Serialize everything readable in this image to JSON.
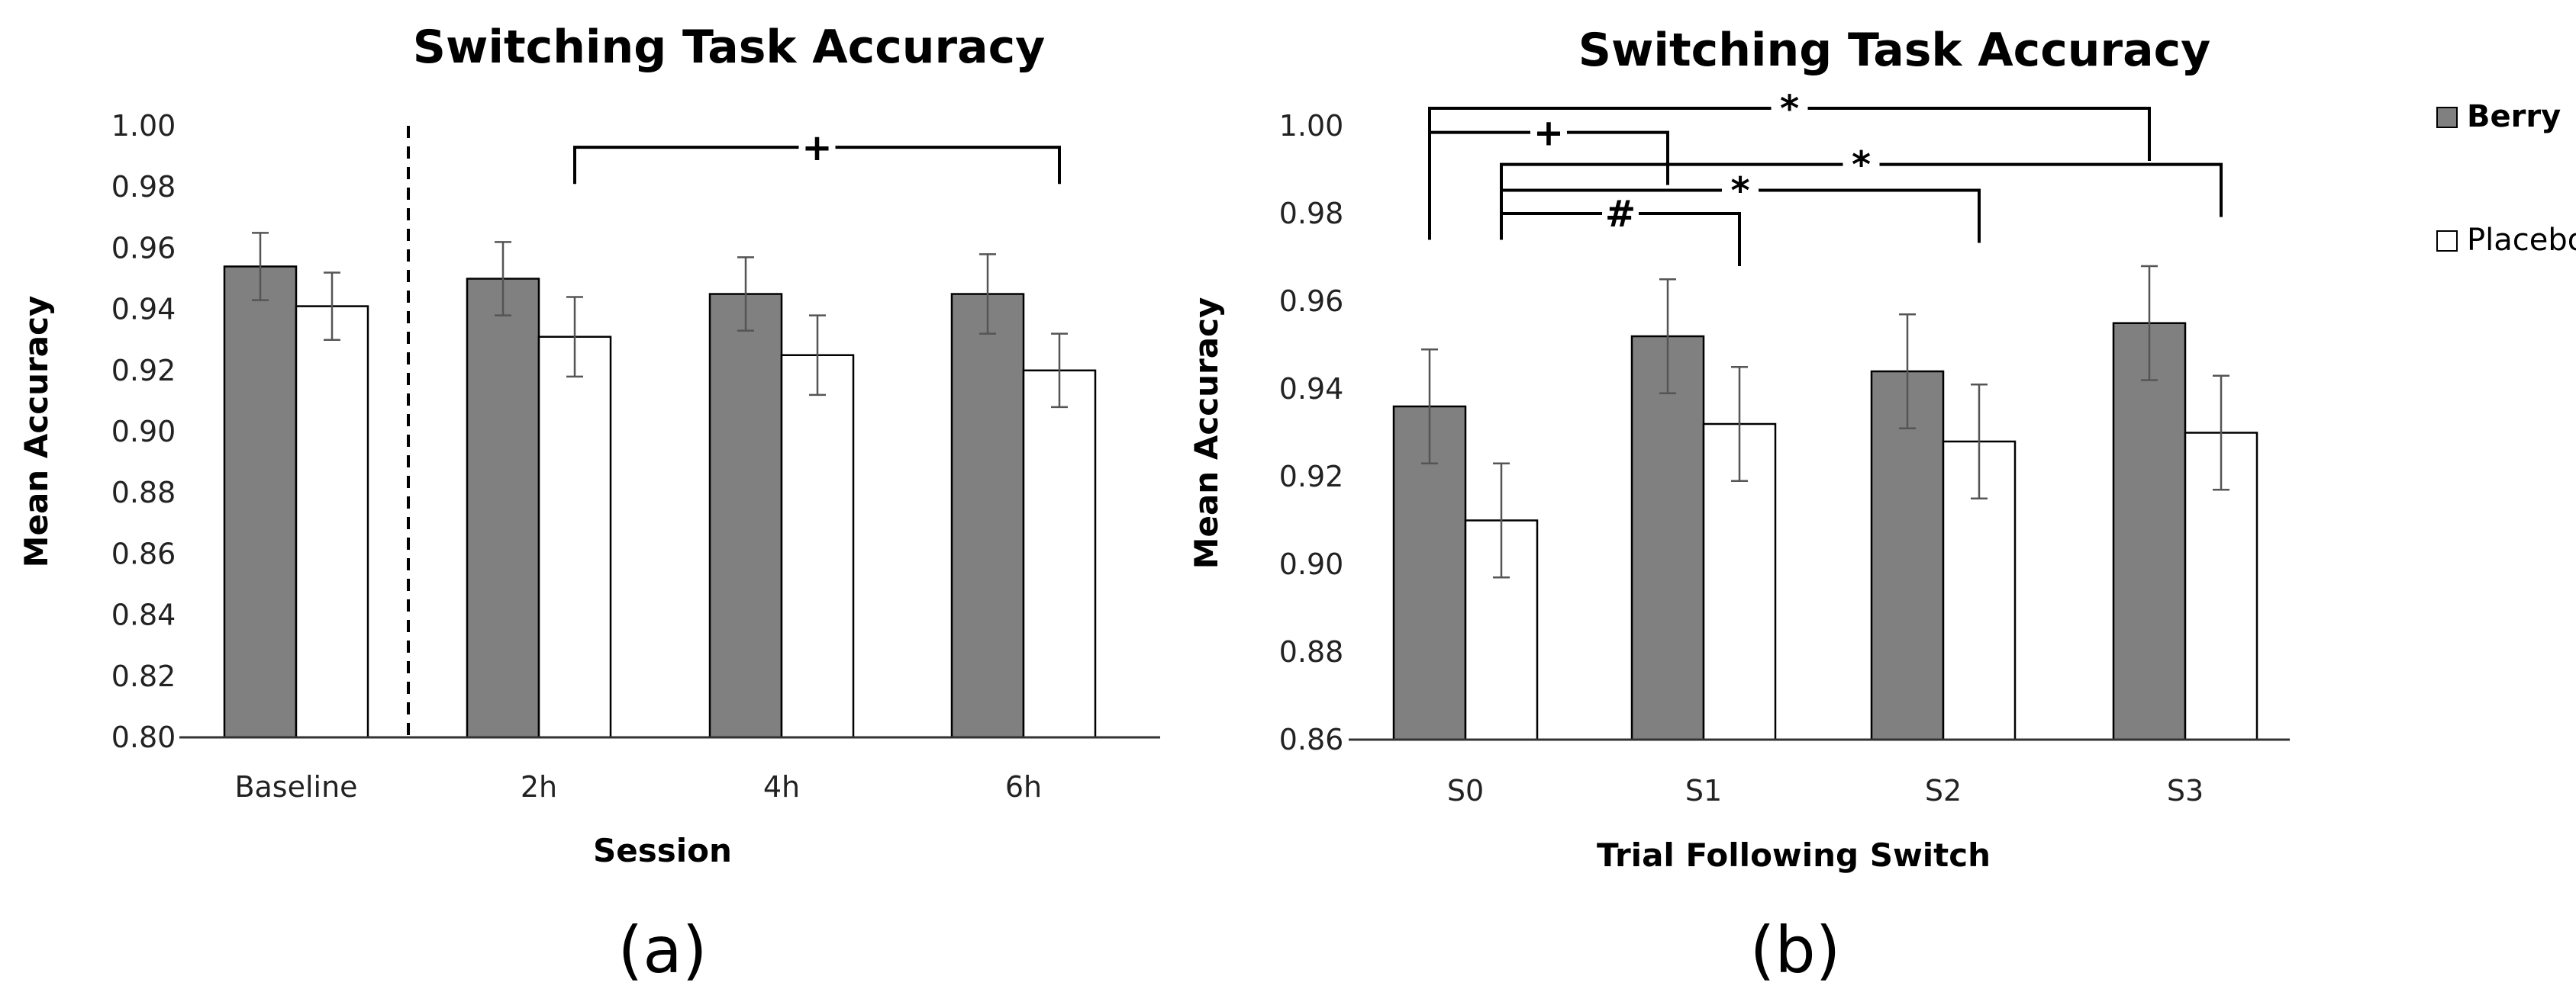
{
  "colors": {
    "berry": "#808080",
    "placebo": "#ffffff",
    "outline": "#000000",
    "error": "#555555"
  },
  "chart_data": [
    {
      "type": "bar",
      "title": "Switching Task Accuracy",
      "panel_label": "(a)",
      "xlabel": "Session",
      "ylabel": "Mean Accuracy",
      "ylim": [
        0.8,
        1.0
      ],
      "ytick_step": 0.02,
      "yticks": [
        "0.80",
        "0.82",
        "0.84",
        "0.86",
        "0.88",
        "0.90",
        "0.92",
        "0.94",
        "0.96",
        "0.98",
        "1.00"
      ],
      "categories": [
        "Baseline",
        "2h",
        "4h",
        "6h"
      ],
      "series": [
        {
          "name": "Berry",
          "values": [
            0.954,
            0.95,
            0.945,
            0.945
          ],
          "errors": [
            0.011,
            0.012,
            0.012,
            0.013
          ]
        },
        {
          "name": "Placebo",
          "values": [
            0.941,
            0.931,
            0.925,
            0.92
          ],
          "errors": [
            0.011,
            0.013,
            0.013,
            0.012
          ]
        }
      ],
      "separator_after_category": 0,
      "annotations": [
        {
          "symbol": "+",
          "from_category": 1,
          "from_series": 1,
          "to_category": 3,
          "to_series": 1,
          "level": 0.993
        }
      ]
    },
    {
      "type": "bar",
      "title": "Switching Task Accuracy",
      "panel_label": "(b)",
      "xlabel": "Trial Following Switch",
      "ylabel": "Mean Accuracy",
      "ylim": [
        0.86,
        1.0
      ],
      "ytick_step": 0.02,
      "yticks": [
        "0.86",
        "0.88",
        "0.90",
        "0.92",
        "0.94",
        "0.96",
        "0.98",
        "1.00"
      ],
      "categories": [
        "S0",
        "S1",
        "S2",
        "S3"
      ],
      "series": [
        {
          "name": "Berry",
          "values": [
            0.936,
            0.952,
            0.944,
            0.955
          ],
          "errors": [
            0.013,
            0.013,
            0.013,
            0.013
          ]
        },
        {
          "name": "Placebo",
          "values": [
            0.91,
            0.932,
            0.928,
            0.93
          ],
          "errors": [
            0.013,
            0.013,
            0.013,
            0.013
          ]
        }
      ],
      "legend": {
        "position": "right",
        "entries": [
          "Berry",
          "Placebo"
        ]
      },
      "annotations": [
        {
          "symbol": "*",
          "from_category": 0,
          "from_series": 0,
          "to_category": 3,
          "to_series": 0,
          "level": 1.004,
          "from_offset": -0.03
        },
        {
          "symbol": "+",
          "from_category": 0,
          "from_series": 0,
          "to_category": 1,
          "to_series": 0,
          "level": 0.9985,
          "from_offset": -0.023
        },
        {
          "symbol": "*",
          "from_category": 0,
          "from_series": 1,
          "to_category": 3,
          "to_series": 1,
          "level": 0.9912,
          "from_offset": -0.0172
        },
        {
          "symbol": "*",
          "from_category": 0,
          "from_series": 1,
          "to_category": 2,
          "to_series": 1,
          "level": 0.9853,
          "from_offset": -0.0112
        },
        {
          "symbol": "#",
          "from_category": 0,
          "from_series": 1,
          "to_category": 1,
          "to_series": 1,
          "level": 0.98,
          "from_offset": -0.0055
        }
      ]
    }
  ]
}
